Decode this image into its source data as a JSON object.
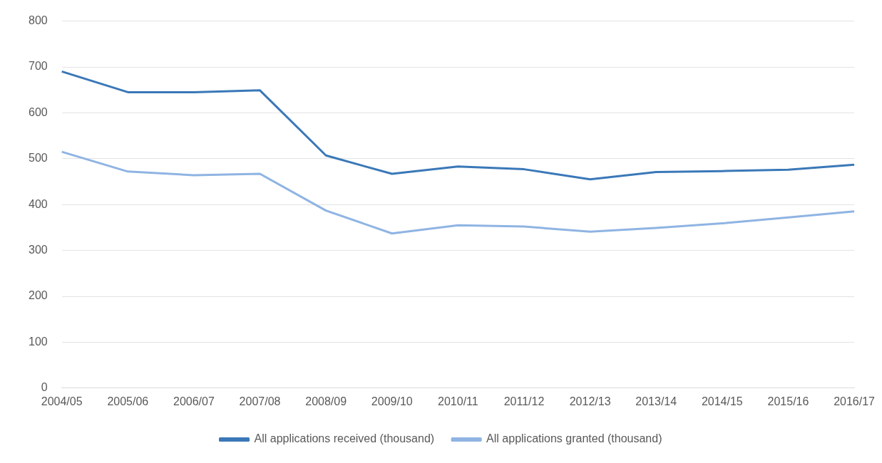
{
  "chart_data": {
    "type": "line",
    "categories": [
      "2004/05",
      "2005/06",
      "2006/07",
      "2007/08",
      "2008/09",
      "2009/10",
      "2010/11",
      "2011/12",
      "2012/13",
      "2013/14",
      "2014/15",
      "2015/16",
      "2016/17"
    ],
    "series": [
      {
        "name": "All applications received (thousand)",
        "color": "#3a78b8",
        "values": [
          690,
          645,
          645,
          649,
          507,
          467,
          483,
          477,
          455,
          471,
          473,
          476,
          487
        ]
      },
      {
        "name": "All applications granted (thousand)",
        "color": "#8fb4e3",
        "values": [
          515,
          472,
          464,
          467,
          387,
          337,
          355,
          352,
          341,
          349,
          359,
          372,
          385
        ]
      }
    ],
    "ylim": [
      0,
      800
    ],
    "yticks": [
      0,
      100,
      200,
      300,
      400,
      500,
      600,
      700,
      800
    ],
    "grid": "y",
    "legend": "bottom",
    "marker": "none"
  }
}
